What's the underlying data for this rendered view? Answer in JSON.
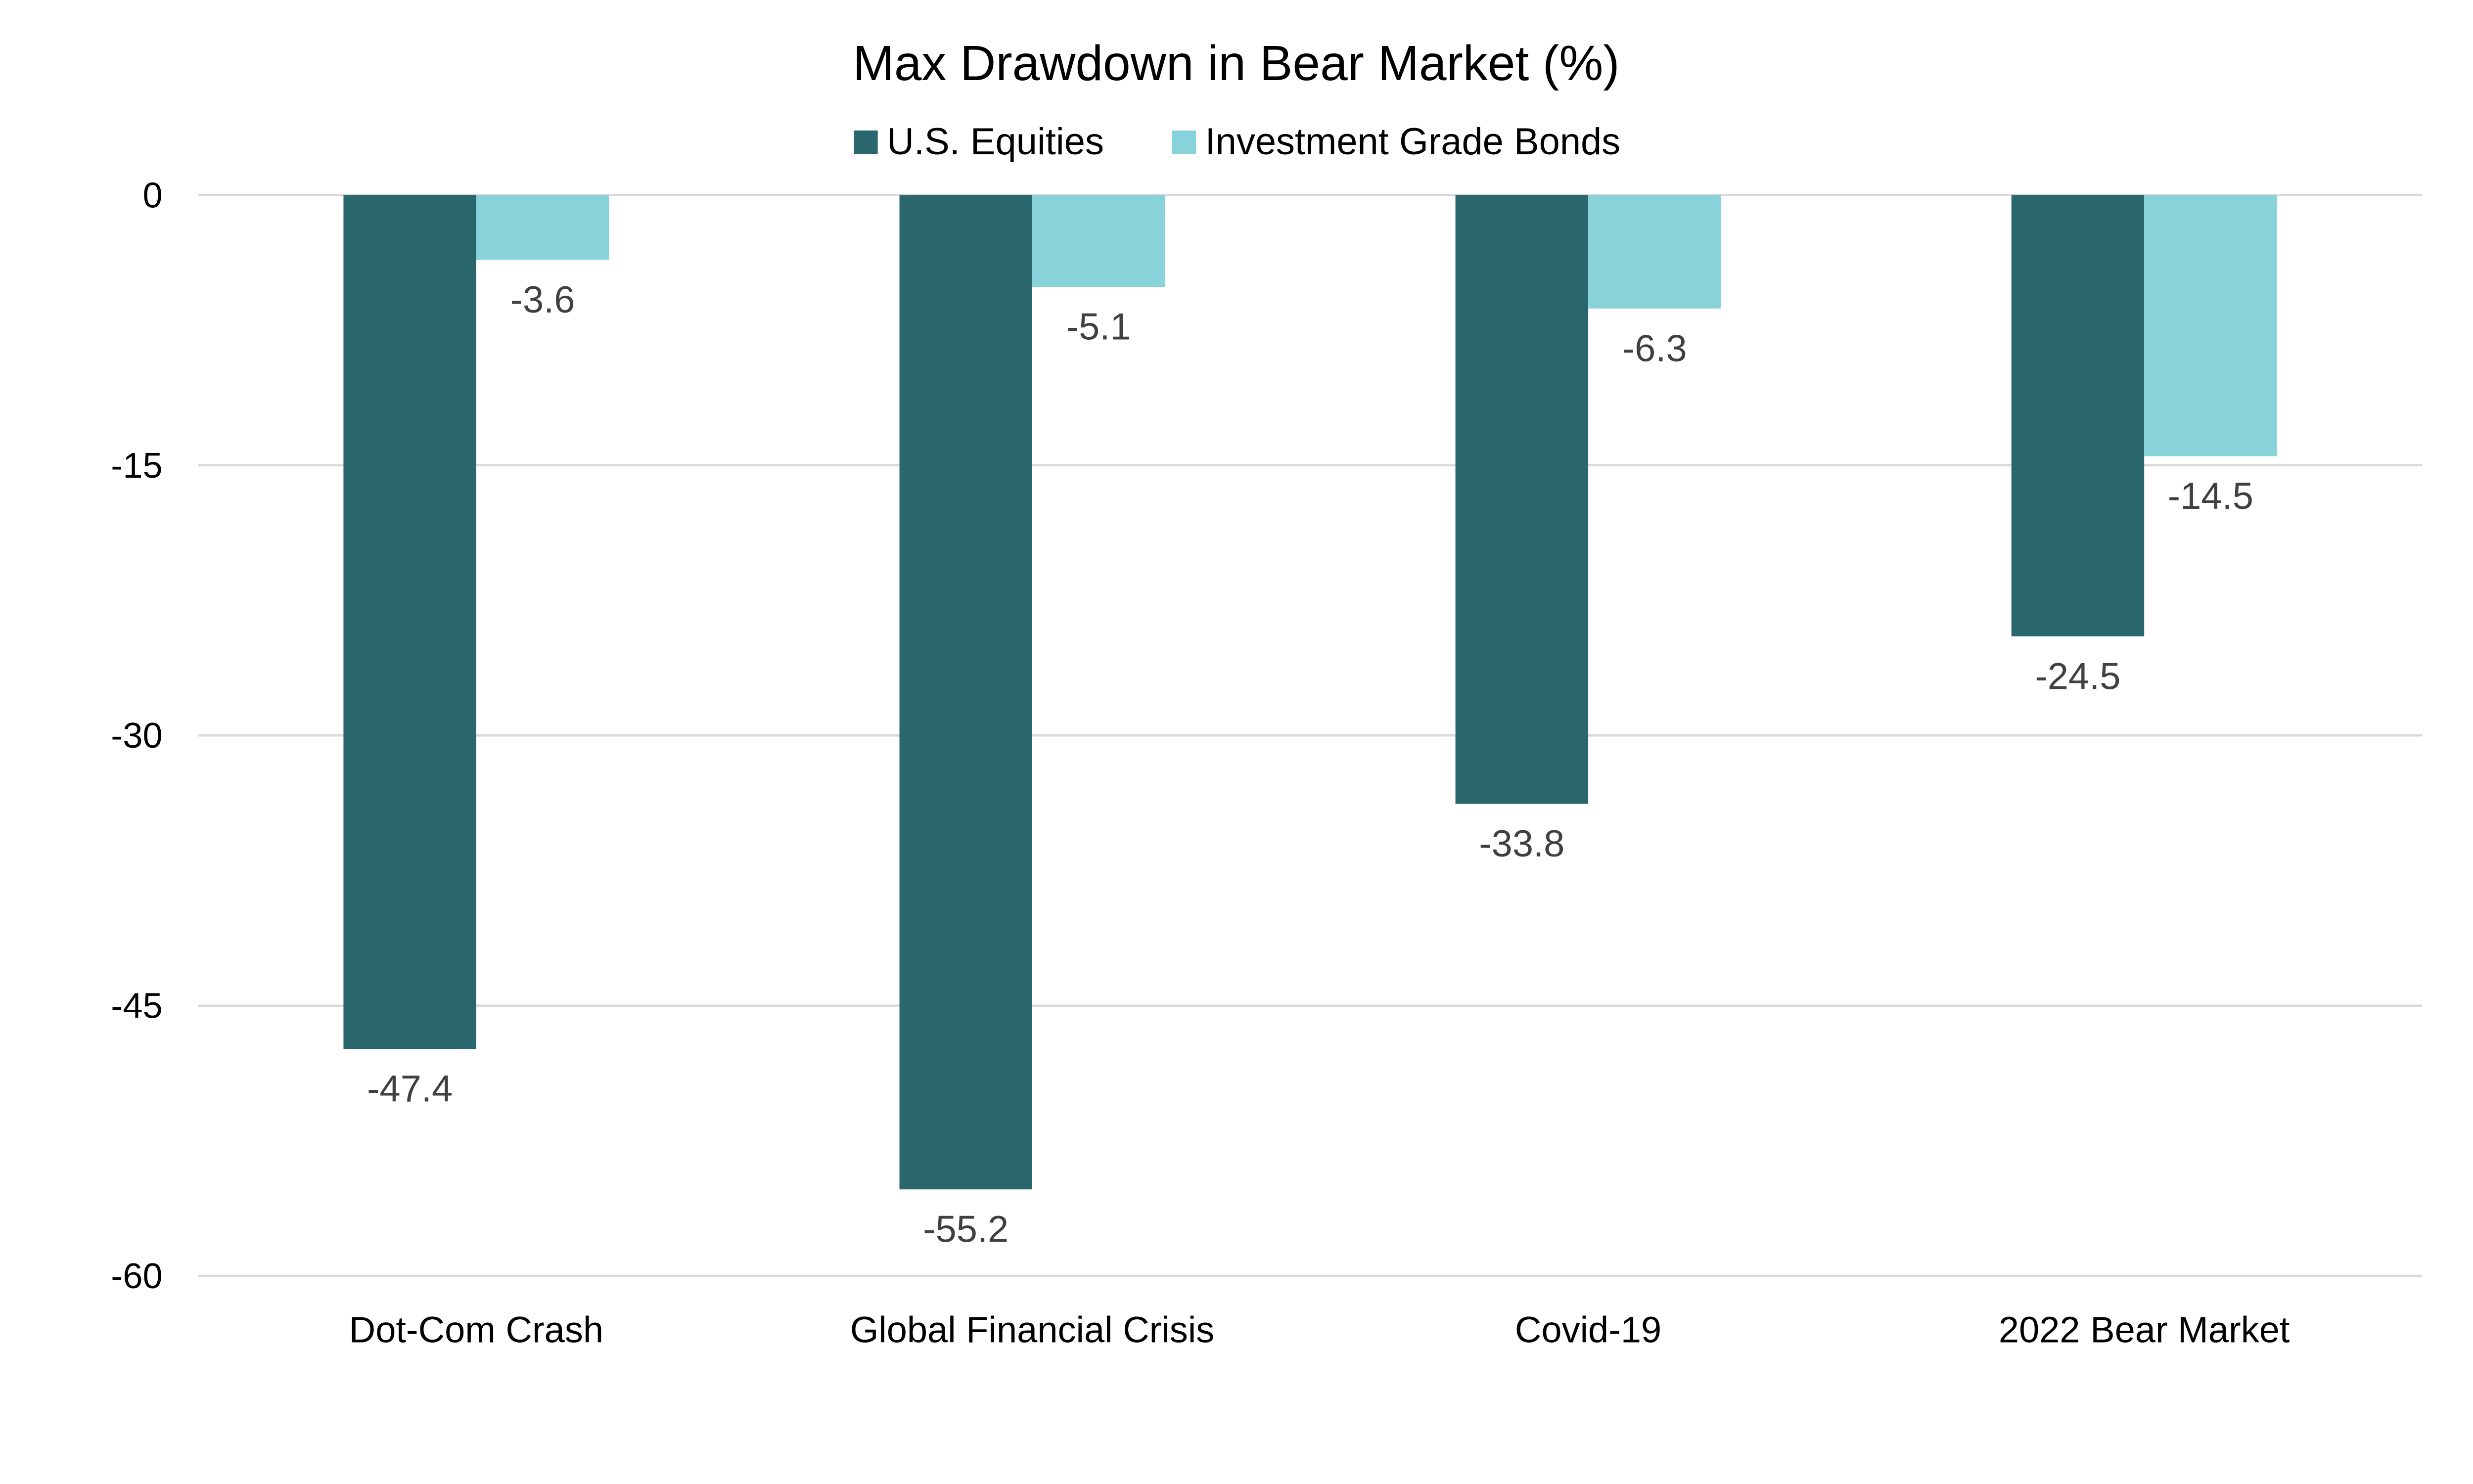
{
  "chart_data": {
    "type": "bar",
    "title": "Max Drawdown in Bear Market (%)",
    "xlabel": "",
    "ylabel": "",
    "categories": [
      "Dot-Com Crash",
      "Global Financial Crisis",
      "Covid-19",
      "2022 Bear Market"
    ],
    "series": [
      {
        "name": "U.S. Equities",
        "color": "#2a676d",
        "values": [
          -47.4,
          -55.2,
          -33.8,
          -24.5
        ]
      },
      {
        "name": "Investment Grade Bonds",
        "color": "#88d3d9",
        "values": [
          -3.6,
          -5.1,
          -6.3,
          -14.5
        ]
      }
    ],
    "ylim": [
      -60,
      0
    ],
    "yticks": [
      0,
      -15,
      -30,
      -45,
      -60
    ],
    "grid": true,
    "legend_position": "top-center",
    "data_labels": true
  }
}
